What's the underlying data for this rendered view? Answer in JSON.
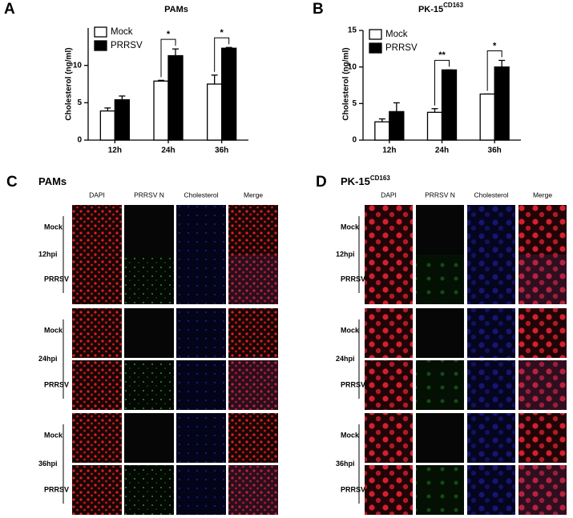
{
  "chart_data": [
    {
      "type": "bar",
      "letter": "A",
      "title": "PAMs",
      "y_label": "Cholesterol (ng/ml)",
      "categories": [
        "12h",
        "24h",
        "36h"
      ],
      "series": [
        {
          "name": "Mock",
          "color": "#ffffff",
          "values": [
            3.9,
            7.9,
            7.5
          ],
          "errors": [
            0.4,
            0.1,
            1.2
          ]
        },
        {
          "name": "PRRSV",
          "color": "#000000",
          "values": [
            5.4,
            11.3,
            12.3
          ],
          "errors": [
            0.5,
            0.9,
            0.1
          ]
        }
      ],
      "significance": [
        null,
        "*",
        "*"
      ],
      "ylim": [
        0,
        15
      ],
      "yticks": [
        0,
        5,
        10
      ],
      "legend": "upper-left"
    },
    {
      "type": "bar",
      "letter": "B",
      "title": "PK-15",
      "title_superscript": "CD163",
      "y_label": "Cholesterol (ng/ml)",
      "categories": [
        "12h",
        "24h",
        "36h"
      ],
      "series": [
        {
          "name": "Mock",
          "color": "#ffffff",
          "values": [
            2.5,
            3.8,
            6.3
          ],
          "errors": [
            0.4,
            0.5,
            0
          ]
        },
        {
          "name": "PRRSV",
          "color": "#000000",
          "values": [
            3.9,
            9.6,
            10.0
          ],
          "errors": [
            1.2,
            0,
            0.9
          ]
        }
      ],
      "significance": [
        null,
        "**",
        "*"
      ],
      "ylim": [
        0,
        15
      ],
      "yticks": [
        0,
        5,
        10,
        15
      ],
      "legend": "upper-left"
    }
  ],
  "panels": [
    {
      "letter": "C",
      "title": "PAMs",
      "columns": [
        "DAPI",
        "PRRSV N",
        "Cholesterol",
        "Merge"
      ],
      "groups": [
        {
          "label": "12hpi",
          "rows": [
            "Mock",
            "PRRSV"
          ]
        },
        {
          "label": "24hpi",
          "rows": [
            "Mock",
            "PRRSV"
          ]
        },
        {
          "label": "36hpi",
          "rows": [
            "Mock",
            "PRRSV"
          ]
        }
      ]
    },
    {
      "letter": "D",
      "title": "PK-15",
      "title_superscript": "CD163",
      "columns": [
        "DAPI",
        "PRRSV N",
        "Cholesterol",
        "Merge"
      ],
      "groups": [
        {
          "label": "12hpi",
          "rows": [
            "Mock",
            "PRRSV"
          ]
        },
        {
          "label": "24hpi",
          "rows": [
            "Mock",
            "PRRSV"
          ]
        },
        {
          "label": "36hpi",
          "rows": [
            "Mock",
            "PRRSV"
          ]
        }
      ]
    }
  ]
}
